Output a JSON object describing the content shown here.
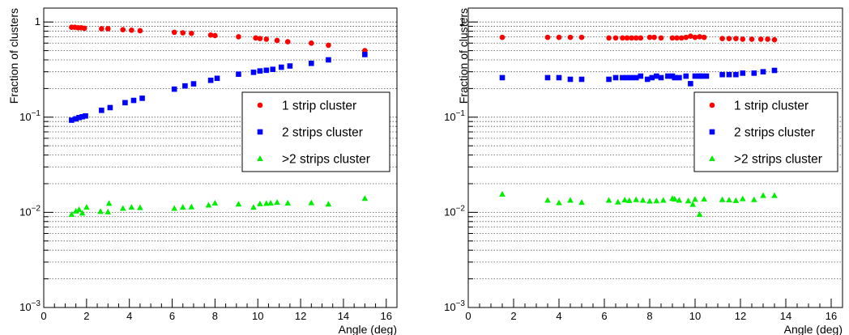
{
  "colors": {
    "one_strip": "#ff0000",
    "two_strips": "#0000ff",
    "more_strips": "#00ee00",
    "grid": "#555555",
    "axis": "#000000"
  },
  "chart_data": [
    {
      "type": "scatter",
      "xlabel": "Angle (deg)",
      "ylabel": "Fraction of clusters",
      "xlim": [
        0,
        16.5
      ],
      "ylim": [
        0.001,
        1.4
      ],
      "yscale": "log",
      "grid": "horizontal",
      "legend_position": "center-right",
      "x_ticks": [
        "0",
        "2",
        "4",
        "6",
        "8",
        "10",
        "12",
        "14",
        "16"
      ],
      "y_ticks": [
        {
          "base": "1",
          "exp": ""
        },
        {
          "base": "10",
          "exp": "−1"
        },
        {
          "base": "10",
          "exp": "−2"
        },
        {
          "base": "10",
          "exp": "−3"
        }
      ],
      "series": [
        {
          "name": "1 strip cluster",
          "marker": "circle",
          "x": [
            1.3,
            1.45,
            1.6,
            1.75,
            1.9,
            2.7,
            3.0,
            3.7,
            4.1,
            4.5,
            6.1,
            6.5,
            6.9,
            7.8,
            8.0,
            9.1,
            9.9,
            10.1,
            10.4,
            10.9,
            11.4,
            12.5,
            13.3,
            15.0
          ],
          "y": [
            0.88,
            0.88,
            0.87,
            0.87,
            0.86,
            0.85,
            0.85,
            0.83,
            0.82,
            0.81,
            0.78,
            0.77,
            0.76,
            0.73,
            0.72,
            0.7,
            0.68,
            0.67,
            0.66,
            0.64,
            0.62,
            0.6,
            0.57,
            0.5
          ]
        },
        {
          "name": "2 strips cluster",
          "marker": "square",
          "x": [
            1.3,
            1.5,
            1.65,
            1.8,
            1.95,
            2.7,
            3.1,
            3.8,
            4.2,
            4.6,
            6.1,
            6.6,
            7.0,
            7.8,
            8.1,
            9.1,
            9.8,
            10.1,
            10.4,
            10.7,
            11.1,
            11.5,
            12.5,
            13.3,
            15.0
          ],
          "y": [
            0.093,
            0.096,
            0.099,
            0.101,
            0.103,
            0.118,
            0.126,
            0.142,
            0.15,
            0.158,
            0.197,
            0.213,
            0.224,
            0.244,
            0.256,
            0.283,
            0.296,
            0.306,
            0.311,
            0.318,
            0.335,
            0.345,
            0.368,
            0.4,
            0.455
          ]
        },
        {
          "name": ">2 strips cluster",
          "marker": "triangle",
          "x": [
            1.3,
            1.5,
            1.65,
            1.8,
            2.0,
            2.65,
            3.0,
            3.05,
            3.7,
            4.1,
            4.5,
            6.1,
            6.5,
            6.9,
            7.7,
            8.0,
            9.1,
            9.8,
            10.1,
            10.4,
            10.6,
            10.9,
            11.4,
            12.5,
            13.3,
            15.0
          ],
          "y": [
            0.0095,
            0.0103,
            0.0107,
            0.0098,
            0.0113,
            0.0102,
            0.0101,
            0.0124,
            0.011,
            0.0113,
            0.0112,
            0.011,
            0.0113,
            0.0114,
            0.0119,
            0.0125,
            0.0122,
            0.0113,
            0.0123,
            0.0124,
            0.0125,
            0.0127,
            0.0125,
            0.0126,
            0.0122,
            0.014
          ]
        }
      ]
    },
    {
      "type": "scatter",
      "xlabel": "Angle (deg)",
      "ylabel": "Fraction of clusters",
      "xlim": [
        0,
        16.5
      ],
      "ylim": [
        0.001,
        1.4
      ],
      "yscale": "log",
      "grid": "horizontal",
      "legend_position": "center-right",
      "x_ticks": [
        "0",
        "2",
        "4",
        "6",
        "8",
        "10",
        "12",
        "14",
        "16"
      ],
      "y_ticks": [
        {
          "base": "1",
          "exp": ""
        },
        {
          "base": "10",
          "exp": "−1"
        },
        {
          "base": "10",
          "exp": "−2"
        },
        {
          "base": "10",
          "exp": "−3"
        }
      ],
      "series": [
        {
          "name": "1 strip cluster",
          "marker": "circle",
          "x": [
            1.5,
            3.5,
            4.0,
            4.5,
            5.0,
            6.2,
            6.5,
            6.8,
            7.0,
            7.2,
            7.4,
            7.6,
            8.0,
            8.2,
            8.5,
            9.0,
            9.2,
            9.4,
            9.6,
            9.8,
            10.0,
            10.2,
            10.4,
            11.2,
            11.5,
            11.8,
            12.1,
            12.5,
            12.9,
            13.2,
            13.5
          ],
          "y": [
            0.69,
            0.69,
            0.69,
            0.69,
            0.69,
            0.68,
            0.68,
            0.68,
            0.68,
            0.68,
            0.68,
            0.68,
            0.69,
            0.69,
            0.68,
            0.68,
            0.68,
            0.68,
            0.69,
            0.71,
            0.69,
            0.7,
            0.69,
            0.67,
            0.67,
            0.67,
            0.66,
            0.66,
            0.66,
            0.66,
            0.65
          ]
        },
        {
          "name": "2 strips cluster",
          "marker": "square",
          "x": [
            1.5,
            3.5,
            4.0,
            4.5,
            5.0,
            6.2,
            6.5,
            6.8,
            7.0,
            7.2,
            7.4,
            7.6,
            7.9,
            8.1,
            8.3,
            8.5,
            8.8,
            9.0,
            9.1,
            9.3,
            9.6,
            9.8,
            10.0,
            10.2,
            10.3,
            10.5,
            11.2,
            11.5,
            11.8,
            12.1,
            12.6,
            13.0,
            13.5
          ],
          "y": [
            0.26,
            0.26,
            0.26,
            0.25,
            0.25,
            0.25,
            0.26,
            0.26,
            0.26,
            0.26,
            0.26,
            0.27,
            0.25,
            0.26,
            0.27,
            0.26,
            0.27,
            0.27,
            0.26,
            0.26,
            0.27,
            0.225,
            0.27,
            0.27,
            0.27,
            0.27,
            0.28,
            0.28,
            0.28,
            0.29,
            0.29,
            0.3,
            0.31
          ]
        },
        {
          "name": ">2 strips cluster",
          "marker": "triangle",
          "x": [
            1.5,
            3.5,
            4.0,
            4.5,
            5.0,
            6.2,
            6.6,
            6.9,
            7.1,
            7.4,
            7.7,
            8.0,
            8.3,
            8.6,
            9.0,
            9.1,
            9.3,
            9.7,
            9.9,
            10.0,
            10.2,
            10.4,
            11.2,
            11.5,
            11.8,
            12.1,
            12.6,
            13.0,
            13.5
          ],
          "y": [
            0.0155,
            0.0134,
            0.0126,
            0.0134,
            0.0127,
            0.0134,
            0.0128,
            0.0135,
            0.0133,
            0.0136,
            0.0134,
            0.0131,
            0.0132,
            0.0134,
            0.014,
            0.0138,
            0.0134,
            0.0132,
            0.0121,
            0.0137,
            0.0095,
            0.0138,
            0.0136,
            0.0135,
            0.0133,
            0.0139,
            0.0136,
            0.015,
            0.015
          ]
        }
      ]
    }
  ]
}
